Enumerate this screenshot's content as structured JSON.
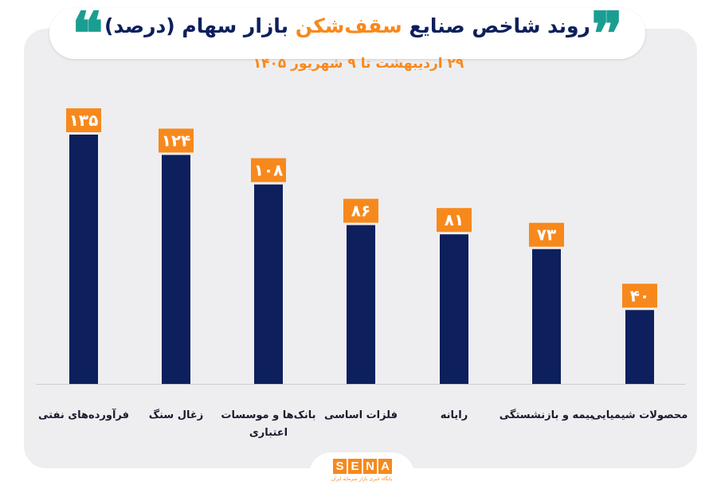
{
  "header": {
    "title_part1": "روند شاخص صنایع ",
    "title_highlight": "سقف‌شکن",
    "title_part2": " بازار سهام (درصد)",
    "subtitle": "۲۹ اردیبهشت تا ۹ شهریور ۱۴۰۵",
    "quote_open": "❝",
    "quote_close": "❞"
  },
  "colors": {
    "bar": "#0d1f5c",
    "label_bg": "#f7891c",
    "accent": "#1a9e92",
    "title": "#0d1f5c"
  },
  "logo": {
    "letters": [
      "S",
      "E",
      "N",
      "A"
    ],
    "tagline": "پایگاه خبری بازار سرمایه ایران"
  },
  "chart_data": {
    "type": "bar",
    "title": "روند شاخص صنایع سقف‌شکن بازار سهام (درصد)",
    "subtitle": "۲۹ اردیبهشت تا ۹ شهریور ۱۴۰۵",
    "categories": [
      [
        "فرآورده‌های نفتی"
      ],
      [
        "زغال سنگ"
      ],
      [
        "بانک‌ها و موسسات",
        "اعتباری"
      ],
      [
        "فلزات اساسی"
      ],
      [
        "رایانه"
      ],
      [
        "بیمه و بازنشستگی"
      ],
      [
        "محصولات شیمیایی"
      ]
    ],
    "values": [
      135,
      124,
      108,
      86,
      81,
      73,
      40
    ],
    "value_labels": [
      "۱۳۵",
      "۱۲۴",
      "۱۰۸",
      "۸۶",
      "۸۱",
      "۷۳",
      "۴۰"
    ],
    "xlabel": "",
    "ylabel": "",
    "ylim": [
      0,
      135
    ],
    "grid": false,
    "legend": "none"
  }
}
